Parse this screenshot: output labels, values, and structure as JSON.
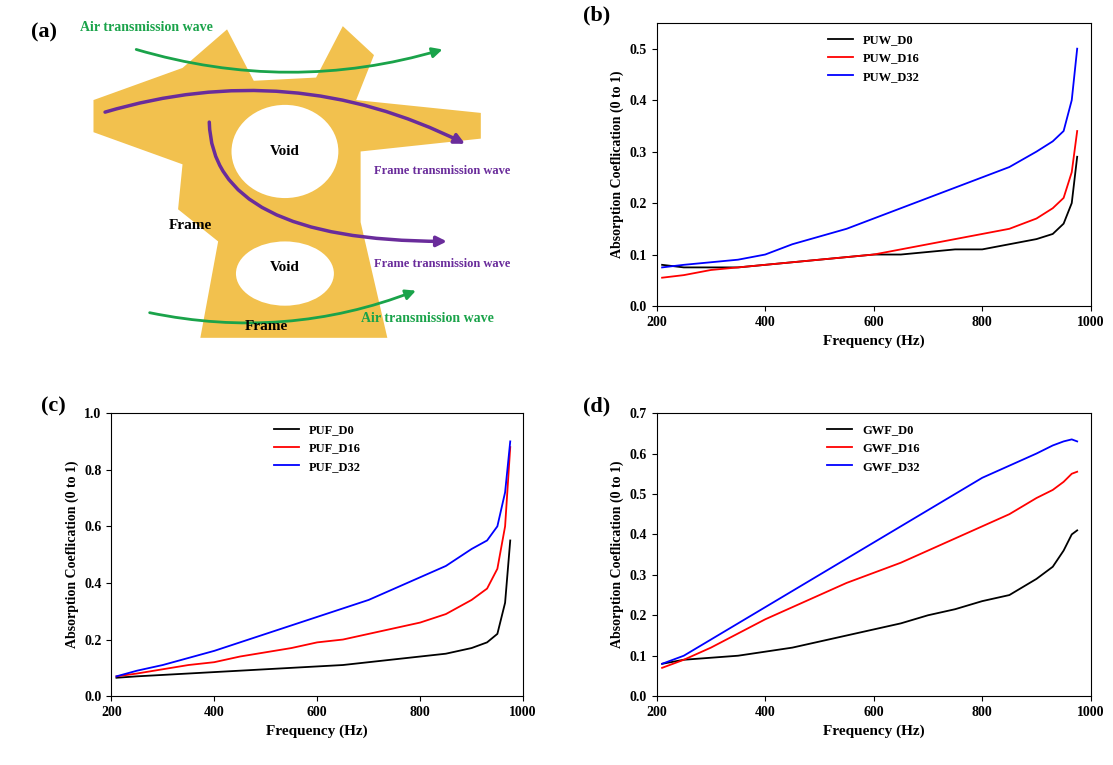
{
  "diagram": {
    "title": "(a)",
    "air_wave_labels": [
      "Air transmission wave",
      "Air transmission wave"
    ],
    "frame_wave_labels": [
      "Frame transmission wave",
      "Frame transmission wave"
    ],
    "void_labels": [
      "Void",
      "Void"
    ],
    "frame_labels": [
      "Frame",
      "Frame"
    ]
  },
  "chart_data": [
    {
      "type": "line",
      "title": "(b)",
      "x_label": "Frequency (Hz)",
      "y_label": "Absorption Coeflication (0 to 1)",
      "x": [
        210,
        250,
        300,
        350,
        400,
        450,
        500,
        550,
        600,
        650,
        700,
        750,
        800,
        850,
        900,
        930,
        950,
        965,
        975
      ],
      "xlim": [
        200,
        1000
      ],
      "xticks": [
        200,
        400,
        600,
        800,
        1000
      ],
      "ylim": [
        0,
        0.55
      ],
      "yticks": [
        {
          "value": 0,
          "label": "0.0"
        },
        0.1,
        0.2,
        0.3,
        0.4,
        0.5
      ],
      "legend": "upper center",
      "series": [
        {
          "name": "PUW_D0",
          "color": "#000000",
          "values": [
            0.08,
            0.075,
            0.075,
            0.075,
            0.08,
            0.085,
            0.09,
            0.095,
            0.1,
            0.1,
            0.105,
            0.11,
            0.11,
            0.12,
            0.13,
            0.14,
            0.16,
            0.2,
            0.29
          ]
        },
        {
          "name": "PUW_D16",
          "color": "#ff0000",
          "values": [
            0.055,
            0.06,
            0.07,
            0.075,
            0.08,
            0.085,
            0.09,
            0.095,
            0.1,
            0.11,
            0.12,
            0.13,
            0.14,
            0.15,
            0.17,
            0.19,
            0.21,
            0.26,
            0.34
          ]
        },
        {
          "name": "PUW_D32",
          "color": "#0000ff",
          "values": [
            0.075,
            0.08,
            0.085,
            0.09,
            0.1,
            0.12,
            0.135,
            0.15,
            0.17,
            0.19,
            0.21,
            0.23,
            0.25,
            0.27,
            0.3,
            0.32,
            0.34,
            0.4,
            0.5
          ]
        }
      ]
    },
    {
      "type": "line",
      "title": "(c)",
      "x_label": "Frequency (Hz)",
      "y_label": "Absorption Coeflication (0 to 1)",
      "x": [
        210,
        250,
        300,
        350,
        400,
        450,
        500,
        550,
        600,
        650,
        700,
        750,
        800,
        850,
        900,
        930,
        950,
        965,
        975
      ],
      "xlim": [
        200,
        1000
      ],
      "xticks": [
        200,
        400,
        600,
        800,
        1000
      ],
      "ylim": [
        0,
        1.0
      ],
      "yticks": [
        {
          "value": 0,
          "label": "0.0"
        },
        0.2,
        0.4,
        0.6,
        0.8,
        {
          "value": 1,
          "label": "1.0"
        }
      ],
      "legend": "upper center",
      "series": [
        {
          "name": "PUF_D0",
          "color": "#000000",
          "values": [
            0.065,
            0.07,
            0.075,
            0.08,
            0.085,
            0.09,
            0.095,
            0.1,
            0.105,
            0.11,
            0.12,
            0.13,
            0.14,
            0.15,
            0.17,
            0.19,
            0.22,
            0.33,
            0.55
          ]
        },
        {
          "name": "PUF_D16",
          "color": "#ff0000",
          "values": [
            0.07,
            0.08,
            0.095,
            0.11,
            0.12,
            0.14,
            0.155,
            0.17,
            0.19,
            0.2,
            0.22,
            0.24,
            0.26,
            0.29,
            0.34,
            0.38,
            0.45,
            0.6,
            0.88
          ]
        },
        {
          "name": "PUF_D32",
          "color": "#0000ff",
          "values": [
            0.07,
            0.09,
            0.11,
            0.135,
            0.16,
            0.19,
            0.22,
            0.25,
            0.28,
            0.31,
            0.34,
            0.38,
            0.42,
            0.46,
            0.52,
            0.55,
            0.6,
            0.72,
            0.9
          ]
        }
      ]
    },
    {
      "type": "line",
      "title": "(d)",
      "x_label": "Frequency (Hz)",
      "y_label": "Absorption Coeflication (0 to 1)",
      "x": [
        210,
        250,
        300,
        350,
        400,
        450,
        500,
        550,
        600,
        650,
        700,
        750,
        800,
        850,
        900,
        930,
        950,
        965,
        975
      ],
      "xlim": [
        200,
        1000
      ],
      "xticks": [
        200,
        400,
        600,
        800,
        1000
      ],
      "ylim": [
        0,
        0.7
      ],
      "yticks": [
        {
          "value": 0,
          "label": "0.0"
        },
        0.1,
        0.2,
        0.3,
        0.4,
        0.5,
        0.6,
        0.7
      ],
      "legend": "upper center",
      "series": [
        {
          "name": "GWF_D0",
          "color": "#000000",
          "values": [
            0.08,
            0.09,
            0.095,
            0.1,
            0.11,
            0.12,
            0.135,
            0.15,
            0.165,
            0.18,
            0.2,
            0.215,
            0.235,
            0.25,
            0.29,
            0.32,
            0.36,
            0.4,
            0.41
          ]
        },
        {
          "name": "GWF_D16",
          "color": "#ff0000",
          "values": [
            0.07,
            0.09,
            0.12,
            0.155,
            0.19,
            0.22,
            0.25,
            0.28,
            0.305,
            0.33,
            0.36,
            0.39,
            0.42,
            0.45,
            0.49,
            0.51,
            0.53,
            0.55,
            0.555
          ]
        },
        {
          "name": "GWF_D32",
          "color": "#0000ff",
          "values": [
            0.08,
            0.1,
            0.14,
            0.18,
            0.22,
            0.26,
            0.3,
            0.34,
            0.38,
            0.42,
            0.46,
            0.5,
            0.54,
            0.57,
            0.6,
            0.62,
            0.63,
            0.635,
            0.63
          ]
        }
      ]
    }
  ]
}
